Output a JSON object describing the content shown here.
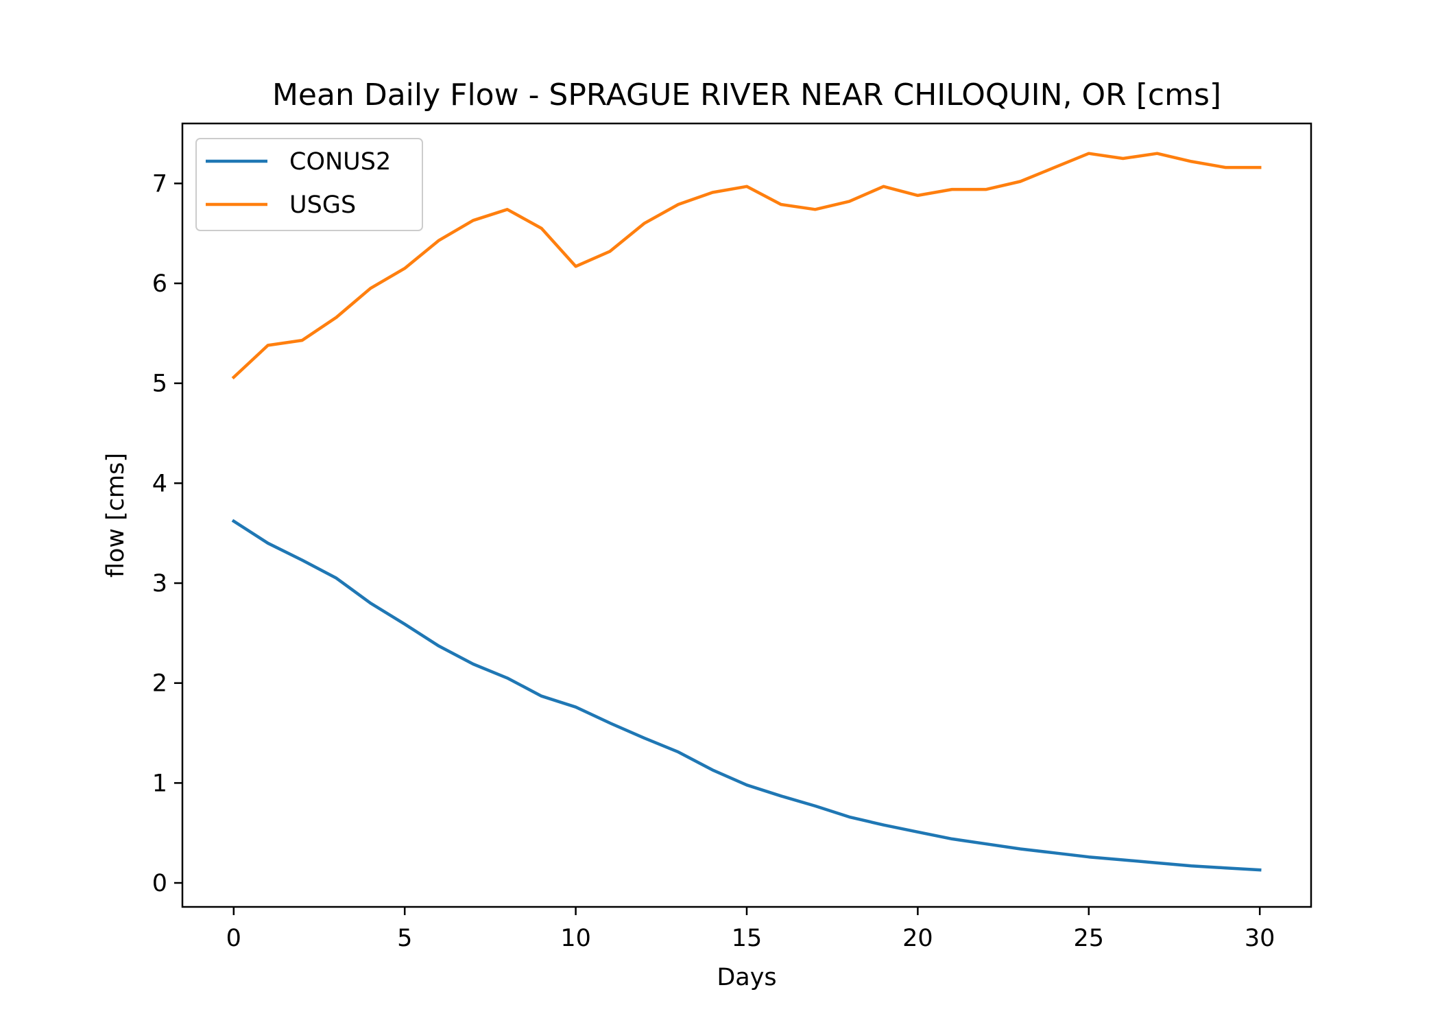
{
  "chart_data": {
    "type": "line",
    "title": "Mean Daily Flow - SPRAGUE RIVER NEAR CHILOQUIN, OR [cms]",
    "xlabel": "Days",
    "ylabel": "flow [cms]",
    "xlim": [
      -1.5,
      31.5
    ],
    "ylim": [
      -0.24,
      7.6
    ],
    "xticks": [
      0,
      5,
      10,
      15,
      20,
      25,
      30
    ],
    "yticks": [
      0,
      1,
      2,
      3,
      4,
      5,
      6,
      7
    ],
    "grid": false,
    "legend_position": "top-left",
    "x": [
      0,
      1,
      2,
      3,
      4,
      5,
      6,
      7,
      8,
      9,
      10,
      11,
      12,
      13,
      14,
      15,
      16,
      17,
      18,
      19,
      20,
      21,
      22,
      23,
      24,
      25,
      26,
      27,
      28,
      29,
      30
    ],
    "series": [
      {
        "name": "CONUS2",
        "color": "#1f77b4",
        "values": [
          3.62,
          3.4,
          3.23,
          3.05,
          2.8,
          2.59,
          2.37,
          2.19,
          2.05,
          1.87,
          1.76,
          1.6,
          1.45,
          1.31,
          1.13,
          0.98,
          0.87,
          0.77,
          0.66,
          0.58,
          0.51,
          0.44,
          0.39,
          0.34,
          0.3,
          0.26,
          0.23,
          0.2,
          0.17,
          0.15,
          0.13
        ]
      },
      {
        "name": "USGS",
        "color": "#ff7f0e",
        "values": [
          5.06,
          5.38,
          5.43,
          5.66,
          5.95,
          6.15,
          6.43,
          6.63,
          6.74,
          6.55,
          6.17,
          6.32,
          6.6,
          6.79,
          6.91,
          6.97,
          6.79,
          6.74,
          6.82,
          6.97,
          6.88,
          6.94,
          6.94,
          7.02,
          7.16,
          7.3,
          7.25,
          7.3,
          7.22,
          7.16,
          7.16
        ]
      }
    ]
  }
}
